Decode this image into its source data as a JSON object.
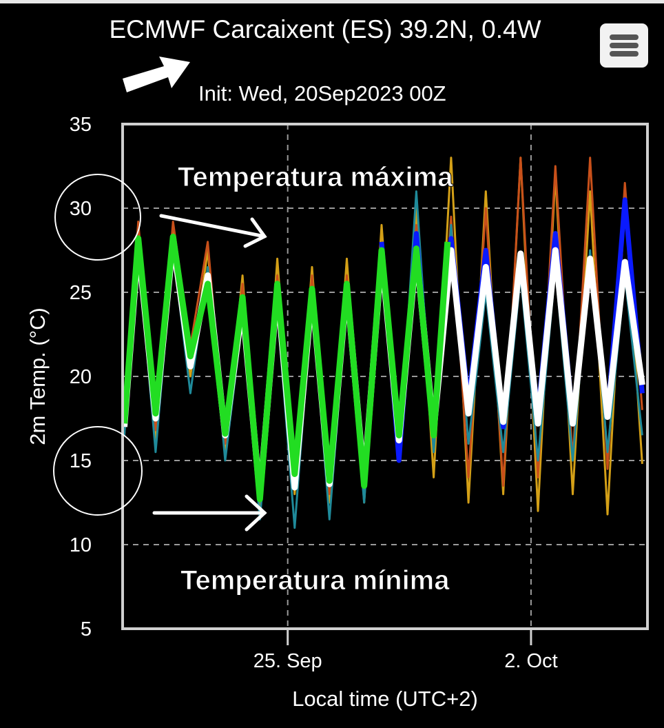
{
  "header": {
    "title": "ECMWF Carcaixent (ES) 39.2N, 0.4W",
    "init": "Init: Wed, 20Sep2023 00Z"
  },
  "menu": {
    "icon": "hamburger-menu-icon"
  },
  "chart_data": {
    "type": "line",
    "ylabel": "2m Temp. (°C)",
    "xlabel": "Local time (UTC+2)",
    "ylim": [
      5,
      35
    ],
    "yticks": [
      "35",
      "30",
      "25",
      "20",
      "15",
      "10",
      "5"
    ],
    "xticks": [
      {
        "label": "25. Sep",
        "day": 25
      },
      {
        "label": "2. Oct",
        "day": 32
      }
    ],
    "xlim_days": [
      20.25,
      35.35
    ],
    "grid": true,
    "annotations": {
      "max_label": "Temperatura máxima",
      "min_label": "Temperatura mínima"
    },
    "series": [
      {
        "color": "#22dd22",
        "x": [
          20.3,
          20.7,
          21.2,
          21.7,
          22.2,
          22.7,
          23.2,
          23.7,
          24.2,
          24.7,
          25.2,
          25.7,
          26.2,
          26.7,
          27.2,
          27.7,
          28.2,
          28.7,
          29.2,
          29.6
        ],
        "y": [
          17.2,
          28.2,
          17.8,
          28.3,
          21.2,
          25.5,
          16.6,
          24.7,
          12.7,
          25.5,
          14.2,
          25.2,
          13.8,
          25.5,
          13.5,
          27.5,
          16.5,
          27.6,
          16.5,
          28.0
        ]
      },
      {
        "color": "#ffffff",
        "x": [
          20.3,
          20.7,
          21.2,
          21.7,
          22.2,
          22.7,
          23.2,
          23.7,
          24.2,
          24.7,
          25.2,
          25.7,
          26.2,
          26.7,
          27.2,
          27.7,
          28.2,
          28.7,
          29.2,
          29.7,
          30.2,
          30.7,
          31.2,
          31.7,
          32.2,
          32.7,
          33.2,
          33.7,
          34.2,
          34.7,
          35.2
        ],
        "y": [
          17.0,
          27.8,
          17.5,
          28.0,
          20.6,
          26.0,
          16.5,
          24.2,
          12.9,
          25.2,
          13.4,
          25.0,
          13.6,
          25.3,
          13.8,
          27.2,
          16.2,
          27.4,
          16.8,
          27.5,
          17.8,
          26.5,
          17.3,
          27.3,
          17.2,
          27.5,
          17.2,
          27.0,
          17.6,
          26.8,
          19.5
        ]
      },
      {
        "color": "#0a1aff",
        "x": [
          27.7,
          28.2,
          28.7,
          29.2,
          29.7,
          30.2,
          30.7,
          31.2,
          31.7,
          32.2,
          32.7,
          33.2,
          33.7,
          34.2,
          34.7,
          35.2
        ],
        "y": [
          28.0,
          15.0,
          28.5,
          16.5,
          28.2,
          18.5,
          27.5,
          17.0,
          27.0,
          17.8,
          28.5,
          17.5,
          27.0,
          17.6,
          30.5,
          19.0
        ]
      },
      {
        "color": "#d4a017",
        "x": [
          20.3,
          20.7,
          21.2,
          21.7,
          22.2,
          22.7,
          23.2,
          23.7,
          24.2,
          24.7,
          25.2,
          25.7,
          26.2,
          26.7,
          27.2,
          27.7,
          28.2,
          28.7,
          29.2,
          29.7,
          30.2,
          30.7,
          31.2,
          31.7,
          32.2,
          32.7,
          33.2,
          33.7,
          34.2,
          34.7,
          35.2
        ],
        "y": [
          17.5,
          29.0,
          16.2,
          29.0,
          20.0,
          27.5,
          15.5,
          26.0,
          12.0,
          27.0,
          13.0,
          26.5,
          12.5,
          27.0,
          12.5,
          29.0,
          15.0,
          30.0,
          14.0,
          33.0,
          12.5,
          31.0,
          13.0,
          33.0,
          12.0,
          32.0,
          13.0,
          31.0,
          11.8,
          30.5,
          14.8
        ]
      },
      {
        "color": "#c8501a",
        "x": [
          20.3,
          20.7,
          21.2,
          21.7,
          22.2,
          22.7,
          23.2,
          23.7,
          24.2,
          24.7,
          25.2,
          25.7,
          26.2,
          26.7,
          27.2,
          27.7,
          28.2,
          28.7,
          29.2,
          29.7,
          30.2,
          30.7,
          31.2,
          31.7,
          32.2,
          32.7,
          33.2,
          33.7,
          34.2,
          34.7,
          35.2
        ],
        "y": [
          16.5,
          29.2,
          16.8,
          29.2,
          21.8,
          28.0,
          16.0,
          25.5,
          13.0,
          26.0,
          13.5,
          26.0,
          13.0,
          26.0,
          14.0,
          27.0,
          16.0,
          29.0,
          15.5,
          29.5,
          14.0,
          30.0,
          13.5,
          33.0,
          14.0,
          32.5,
          15.0,
          33.0,
          14.5,
          31.5,
          18.0
        ]
      },
      {
        "color": "#1f8a9a",
        "x": [
          20.3,
          20.7,
          21.2,
          21.7,
          22.2,
          22.7,
          23.2,
          23.7,
          24.2,
          24.7,
          25.2,
          25.7,
          26.2,
          26.7,
          27.2,
          27.7,
          28.2,
          28.7,
          29.2,
          29.7,
          30.2,
          30.7,
          31.2,
          31.7,
          32.2,
          32.7,
          33.2,
          33.7,
          34.2,
          34.7,
          35.2
        ],
        "y": [
          16.5,
          27.5,
          15.5,
          27.5,
          19.0,
          26.5,
          15.0,
          23.5,
          11.5,
          24.0,
          11.0,
          24.5,
          11.5,
          24.5,
          12.5,
          27.0,
          15.0,
          31.0,
          15.5,
          29.0,
          16.0,
          25.0,
          15.5,
          26.0,
          15.0,
          26.5,
          15.0,
          27.5,
          15.5,
          26.0,
          16.5
        ]
      }
    ]
  }
}
